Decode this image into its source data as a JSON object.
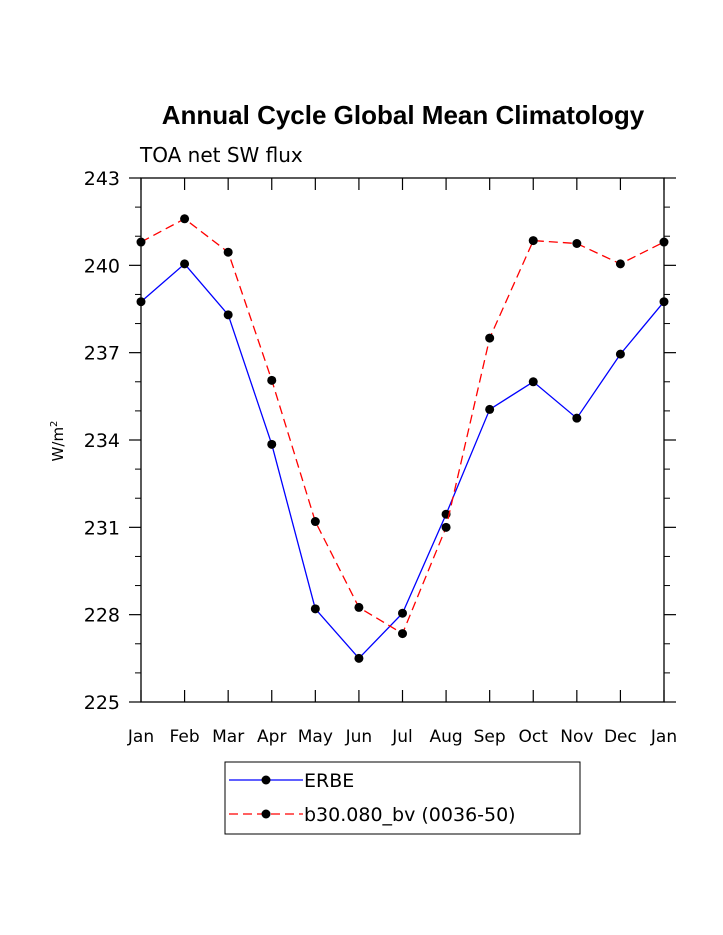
{
  "chart_data": {
    "type": "line",
    "title": "Annual Cycle Global Mean Climatology",
    "subtitle": "TOA net SW flux",
    "xlabel": "",
    "ylabel": "W/m",
    "ylabel_superscript": "2",
    "categories": [
      "Jan",
      "Feb",
      "Mar",
      "Apr",
      "May",
      "Jun",
      "Jul",
      "Aug",
      "Sep",
      "Oct",
      "Nov",
      "Dec",
      "Jan"
    ],
    "ylim": [
      225,
      243
    ],
    "yticks": [
      225,
      228,
      231,
      234,
      237,
      240,
      243
    ],
    "ytick_labels": [
      "225",
      "228",
      "231",
      "234",
      "237",
      "240",
      "243"
    ],
    "grid": false,
    "legend_position": "bottom",
    "series": [
      {
        "name": "ERBE",
        "color": "#0000ff",
        "dash": "solid",
        "values": [
          238.75,
          240.05,
          238.3,
          233.85,
          228.2,
          226.5,
          228.05,
          231.45,
          235.05,
          236.0,
          234.75,
          236.95,
          238.75
        ]
      },
      {
        "name": "b30.080_bv (0036-50)",
        "color": "#ff0000",
        "dash": "dashed",
        "values": [
          240.8,
          241.6,
          240.45,
          236.05,
          231.2,
          228.25,
          227.35,
          231.0,
          237.5,
          240.85,
          240.75,
          240.05,
          240.8
        ]
      }
    ]
  }
}
